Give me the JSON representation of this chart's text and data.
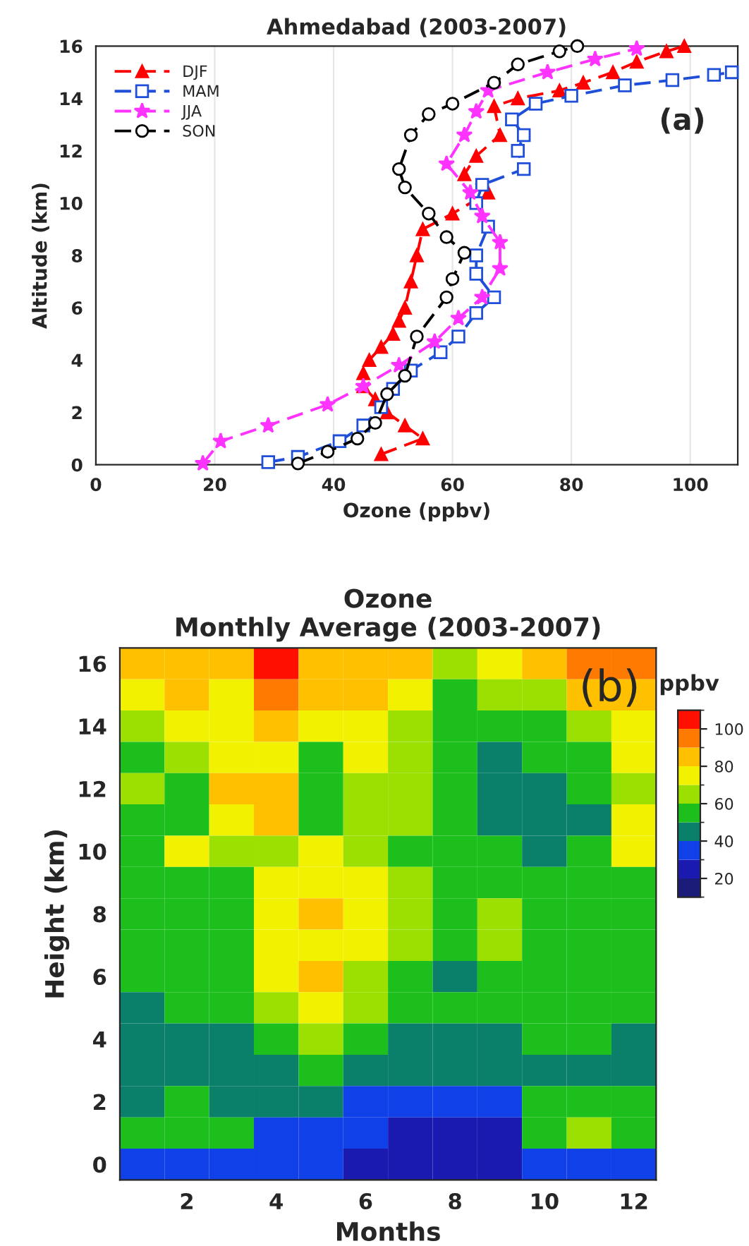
{
  "chart_data": [
    {
      "type": "line",
      "title": "Ahmedabad (2003-2007)",
      "xlabel": "Ozone (ppbv)",
      "ylabel": "Altitude (km)",
      "xlim": [
        0,
        108
      ],
      "xticks": [
        0,
        20,
        40,
        60,
        80,
        100
      ],
      "ylim": [
        0,
        16
      ],
      "yticks": [
        0,
        2,
        4,
        6,
        8,
        10,
        12,
        14,
        16
      ],
      "grid": "x",
      "legend": "top left",
      "line_style": "dashed",
      "annotations": [
        "(a)"
      ],
      "series": [
        {
          "name": "DJF",
          "color": "#ff0000",
          "marker": "triangle",
          "x": [
            48,
            55,
            52,
            49,
            47,
            45,
            45,
            46,
            48,
            50,
            51,
            52,
            53,
            54,
            55,
            60,
            66,
            62,
            64,
            68,
            67,
            71,
            78,
            82,
            87,
            91,
            96,
            99
          ],
          "values": [
            0.4,
            1.0,
            1.5,
            2.0,
            2.5,
            3.0,
            3.5,
            4.0,
            4.5,
            5.0,
            5.5,
            6.0,
            7.0,
            8.0,
            9.0,
            9.6,
            10.4,
            11.1,
            11.8,
            12.6,
            13.7,
            14.0,
            14.3,
            14.6,
            15.0,
            15.4,
            15.8,
            16.0
          ]
        },
        {
          "name": "MAM",
          "color": "#1f4fd8",
          "marker": "square",
          "x": [
            29,
            34,
            41,
            45,
            48,
            50,
            53,
            58,
            61,
            64,
            67,
            64,
            64,
            66,
            64,
            65,
            72,
            71,
            72,
            70,
            74,
            80,
            89,
            97,
            104,
            107
          ],
          "values": [
            0.1,
            0.3,
            0.9,
            1.5,
            2.2,
            2.9,
            3.6,
            4.3,
            4.9,
            5.8,
            6.4,
            7.3,
            8.0,
            9.1,
            10.0,
            10.7,
            11.3,
            12.0,
            12.6,
            13.2,
            13.8,
            14.1,
            14.5,
            14.7,
            14.9,
            15.0
          ]
        },
        {
          "name": "JJA",
          "color": "#ff33ff",
          "marker": "star",
          "x": [
            18,
            21,
            29,
            39,
            45,
            51,
            57,
            61,
            65,
            68,
            68,
            65,
            63,
            59,
            62,
            64,
            66,
            76,
            84,
            91
          ],
          "values": [
            0.05,
            0.9,
            1.5,
            2.3,
            3.0,
            3.8,
            4.7,
            5.6,
            6.4,
            7.5,
            8.5,
            9.5,
            10.4,
            11.5,
            12.6,
            13.5,
            14.3,
            15.0,
            15.5,
            15.9
          ]
        },
        {
          "name": "SON",
          "color": "#000000",
          "marker": "circle",
          "x": [
            34,
            39,
            44,
            47,
            49,
            52,
            54,
            59,
            60,
            62,
            59,
            56,
            52,
            51,
            53,
            56,
            60,
            67,
            71,
            78,
            81
          ],
          "values": [
            0.05,
            0.5,
            1.0,
            1.6,
            2.7,
            3.4,
            4.9,
            6.4,
            7.1,
            8.1,
            8.7,
            9.6,
            10.6,
            11.3,
            12.6,
            13.4,
            13.8,
            14.6,
            15.3,
            15.8,
            16.0
          ]
        }
      ]
    },
    {
      "type": "heatmap",
      "title": "Ozone\nMonthly Average (2003-2007)",
      "xlabel": "Months",
      "ylabel": "Height (km)",
      "clabel": "ppbv",
      "annotations": [
        "(b)"
      ],
      "categories": [
        null,
        "2",
        null,
        "4",
        null,
        "6",
        null,
        "8",
        null,
        "10",
        null,
        "12"
      ],
      "y_categories": [
        "16",
        null,
        "14",
        null,
        "12",
        null,
        "10",
        null,
        "8",
        null,
        "6",
        null,
        "4",
        null,
        "2",
        null,
        "0"
      ],
      "clim": [
        10,
        110
      ],
      "cticks": [
        20,
        40,
        60,
        80,
        100
      ],
      "cells": [
        [
          85,
          88,
          85,
          100,
          88,
          85,
          80,
          65,
          72,
          80,
          95,
          92
        ],
        [
          72,
          82,
          78,
          98,
          80,
          85,
          72,
          55,
          60,
          62,
          80,
          85
        ],
        [
          65,
          75,
          75,
          85,
          70,
          78,
          68,
          55,
          55,
          55,
          68,
          75
        ],
        [
          55,
          60,
          75,
          78,
          55,
          72,
          62,
          52,
          48,
          52,
          55,
          72
        ],
        [
          62,
          55,
          82,
          80,
          55,
          65,
          60,
          50,
          48,
          48,
          55,
          62
        ],
        [
          55,
          58,
          75,
          80,
          58,
          68,
          60,
          55,
          48,
          40,
          45,
          70
        ],
        [
          52,
          70,
          60,
          62,
          75,
          68,
          58,
          55,
          52,
          45,
          52,
          72
        ],
        [
          50,
          55,
          58,
          72,
          78,
          72,
          60,
          55,
          55,
          55,
          55,
          58
        ],
        [
          52,
          55,
          55,
          75,
          82,
          72,
          62,
          55,
          65,
          55,
          55,
          58
        ],
        [
          52,
          52,
          55,
          70,
          78,
          70,
          60,
          55,
          62,
          55,
          52,
          58
        ],
        [
          52,
          52,
          55,
          72,
          80,
          68,
          58,
          48,
          55,
          55,
          55,
          55
        ],
        [
          48,
          50,
          52,
          62,
          72,
          62,
          55,
          52,
          52,
          55,
          55,
          52
        ],
        [
          40,
          45,
          48,
          55,
          62,
          55,
          48,
          48,
          48,
          50,
          55,
          45
        ],
        [
          40,
          40,
          45,
          48,
          50,
          45,
          42,
          42,
          40,
          48,
          45,
          40
        ],
        [
          48,
          55,
          48,
          40,
          40,
          38,
          35,
          35,
          35,
          55,
          58,
          50
        ],
        [
          55,
          58,
          52,
          38,
          35,
          30,
          25,
          25,
          28,
          55,
          60,
          55
        ],
        [
          38,
          38,
          36,
          35,
          32,
          25,
          22,
          22,
          22,
          32,
          38,
          38
        ]
      ]
    }
  ]
}
